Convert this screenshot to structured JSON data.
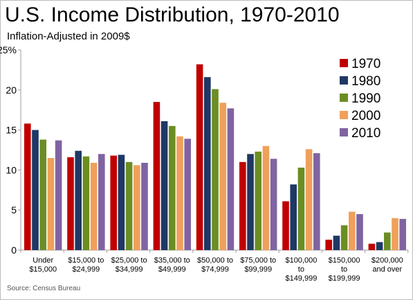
{
  "page": {
    "title": "U.S. Income Distribution, 1970-2010",
    "subtitle": "Inflation-Adjusted in 2009$",
    "source": "Source: Census Bureau"
  },
  "chart_data": {
    "type": "bar",
    "title": "U.S. Income Distribution, 1970-2010",
    "subtitle": "Inflation-Adjusted in 2009$",
    "xlabel": "",
    "ylabel": "",
    "ylim": [
      0,
      25
    ],
    "yticks": [
      0,
      5,
      10,
      15,
      20,
      25
    ],
    "ytick_labels": [
      "0",
      "5",
      "10",
      "15",
      "20",
      "25%"
    ],
    "grid": false,
    "legend_position": "top-right",
    "categories": [
      [
        "Under",
        "$15,000"
      ],
      [
        "$15,000 to",
        "$24,999"
      ],
      [
        "$25,000 to",
        "$34,999"
      ],
      [
        "$35,000 to",
        "$49,999"
      ],
      [
        "$50,000 to",
        "$74,999"
      ],
      [
        "$75,000 to",
        "$99,999"
      ],
      [
        "$100,000",
        "to",
        "$149,999"
      ],
      [
        "$150,000",
        "to",
        "$199,999"
      ],
      [
        "$200,000",
        "and over"
      ]
    ],
    "series": [
      {
        "name": "1970",
        "color": "#c00000",
        "values": [
          15.8,
          11.6,
          11.8,
          18.5,
          23.2,
          11.0,
          6.1,
          1.3,
          0.8
        ]
      },
      {
        "name": "1980",
        "color": "#1f3864",
        "values": [
          15.0,
          12.4,
          11.9,
          16.1,
          21.6,
          12.0,
          8.2,
          1.8,
          1.0
        ]
      },
      {
        "name": "1990",
        "color": "#6b8e23",
        "values": [
          13.8,
          11.7,
          11.0,
          15.5,
          20.1,
          12.3,
          10.3,
          3.1,
          2.2
        ]
      },
      {
        "name": "2000",
        "color": "#f0a05a",
        "values": [
          11.5,
          10.9,
          10.6,
          14.2,
          18.4,
          13.0,
          12.6,
          4.8,
          4.0
        ]
      },
      {
        "name": "2010",
        "color": "#8064a2",
        "values": [
          13.7,
          12.0,
          10.9,
          13.9,
          17.7,
          11.4,
          12.1,
          4.5,
          3.9
        ]
      }
    ]
  }
}
